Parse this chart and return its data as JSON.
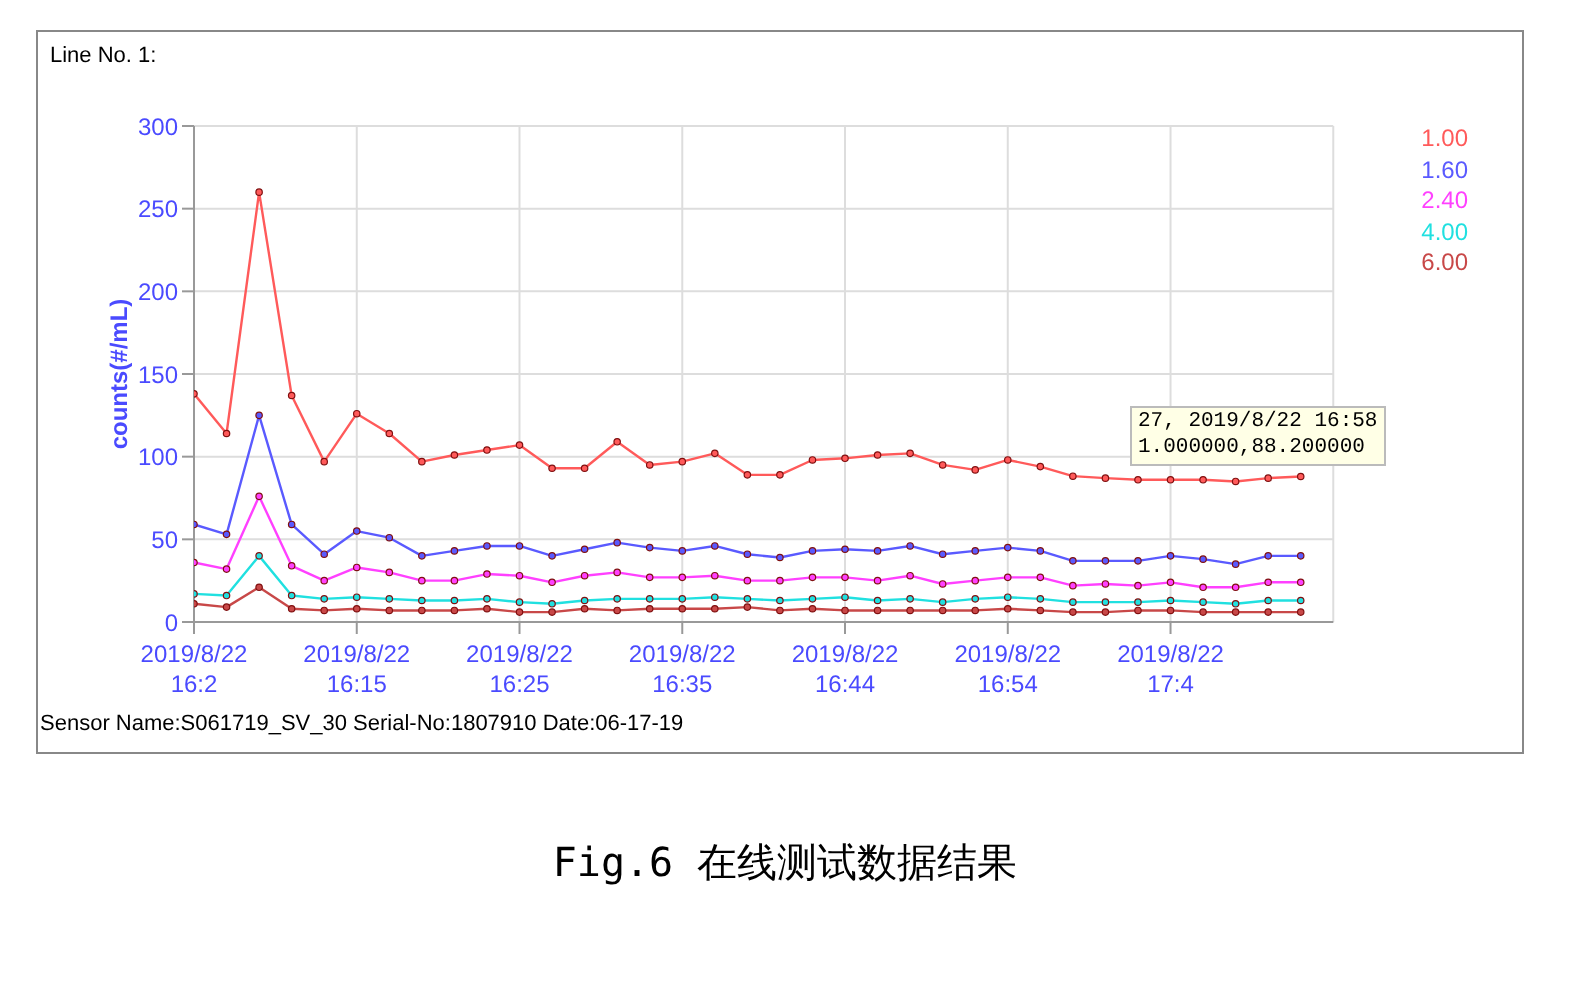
{
  "chart_data": {
    "type": "line",
    "categories": [
      "2019/8/22\n16:2",
      null,
      null,
      null,
      null,
      "2019/8/22\n16:15",
      null,
      null,
      null,
      null,
      "2019/8/22\n16:25",
      null,
      null,
      null,
      null,
      "2019/8/22\n16:35",
      null,
      null,
      null,
      null,
      "2019/8/22\n16:44",
      null,
      null,
      null,
      null,
      "2019/8/22\n16:54",
      null,
      null,
      null,
      null,
      "2019/8/22\n17:4",
      null,
      null,
      null,
      null
    ],
    "series": [
      {
        "name": "1.00",
        "color": "#ff5a5a",
        "values": [
          138,
          114,
          260,
          137,
          97,
          126,
          114,
          97,
          101,
          104,
          107,
          93,
          93,
          109,
          95,
          97,
          102,
          89,
          89,
          98,
          99,
          101,
          102,
          95,
          92,
          98,
          94,
          88.2,
          87,
          86,
          86,
          86,
          85,
          87,
          88
        ]
      },
      {
        "name": "1.60",
        "color": "#5a5aff",
        "values": [
          59,
          53,
          125,
          59,
          41,
          55,
          51,
          40,
          43,
          46,
          46,
          40,
          44,
          48,
          45,
          43,
          46,
          41,
          39,
          43,
          44,
          43,
          46,
          41,
          43,
          45,
          43,
          37,
          37,
          37,
          40,
          38,
          35,
          40,
          40
        ]
      },
      {
        "name": "2.40",
        "color": "#ff40ff",
        "values": [
          36,
          32,
          76,
          34,
          25,
          33,
          30,
          25,
          25,
          29,
          28,
          24,
          28,
          30,
          27,
          27,
          28,
          25,
          25,
          27,
          27,
          25,
          28,
          23,
          25,
          27,
          27,
          22,
          23,
          22,
          24,
          21,
          21,
          24,
          24
        ]
      },
      {
        "name": "4.00",
        "color": "#20e0e0",
        "values": [
          17,
          16,
          40,
          16,
          14,
          15,
          14,
          13,
          13,
          14,
          12,
          11,
          13,
          14,
          14,
          14,
          15,
          14,
          13,
          14,
          15,
          13,
          14,
          12,
          14,
          15,
          14,
          12,
          12,
          12,
          13,
          12,
          11,
          13,
          13
        ]
      },
      {
        "name": "6.00",
        "color": "#c84848",
        "values": [
          11,
          9,
          21,
          8,
          7,
          8,
          7,
          7,
          7,
          8,
          6,
          6,
          8,
          7,
          8,
          8,
          8,
          9,
          7,
          8,
          7,
          7,
          7,
          7,
          7,
          8,
          7,
          6,
          6,
          7,
          7,
          6,
          6,
          6,
          6
        ]
      }
    ],
    "ylabel": "counts(#/mL)",
    "ylim": [
      0,
      300
    ],
    "yticks": [
      0,
      50,
      100,
      150,
      200,
      250,
      300
    ],
    "grid": true,
    "legend": "top right",
    "marker": "circle",
    "line_style": "solid",
    "annotations": [
      "Line No. 1:",
      "27, 2019/8/22 16:58\n1.000000,88.200000",
      "Sensor Name:S061719_SV_30 Serial-No:1807910  Date:06-17-19",
      "Fig.6 在线测试数据结果"
    ]
  }
}
